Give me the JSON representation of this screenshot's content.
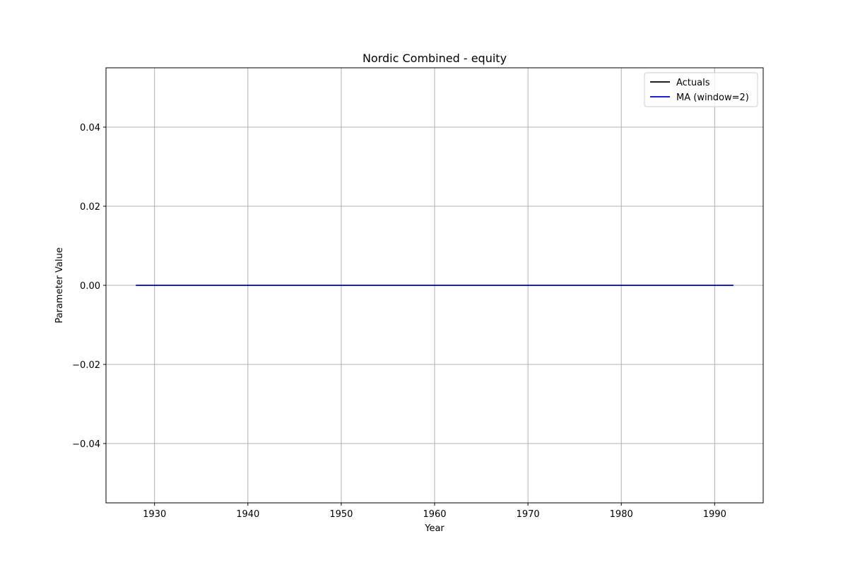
{
  "chart_data": {
    "type": "line",
    "title": "Nordic Combined - equity",
    "xlabel": "Year",
    "ylabel": "Parameter Value",
    "xlim": [
      1924.8,
      1995.2
    ],
    "ylim": [
      -0.055,
      0.055
    ],
    "xticks": [
      1930,
      1940,
      1950,
      1960,
      1970,
      1980,
      1990
    ],
    "xtick_labels": [
      "1930",
      "1940",
      "1950",
      "1960",
      "1970",
      "1980",
      "1990"
    ],
    "yticks": [
      -0.04,
      -0.02,
      0.0,
      0.02,
      0.04
    ],
    "ytick_labels": [
      "−0.04",
      "−0.02",
      "0.00",
      "0.02",
      "0.04"
    ],
    "grid": true,
    "legend_position": "top-right",
    "series": [
      {
        "name": "Actuals",
        "color": "#000000",
        "x": [
          1928,
          1932,
          1936,
          1948,
          1952,
          1956,
          1960,
          1964,
          1968,
          1972,
          1976,
          1980,
          1984,
          1988,
          1992
        ],
        "y": [
          0,
          0,
          0,
          0,
          0,
          0,
          0,
          0,
          0,
          0,
          0,
          0,
          0,
          0,
          0
        ]
      },
      {
        "name": "MA (window=2)",
        "color": "#0000cc",
        "x": [
          1928,
          1932,
          1936,
          1948,
          1952,
          1956,
          1960,
          1964,
          1968,
          1972,
          1976,
          1980,
          1984,
          1988,
          1992
        ],
        "y": [
          0,
          0,
          0,
          0,
          0,
          0,
          0,
          0,
          0,
          0,
          0,
          0,
          0,
          0,
          0
        ]
      }
    ]
  }
}
